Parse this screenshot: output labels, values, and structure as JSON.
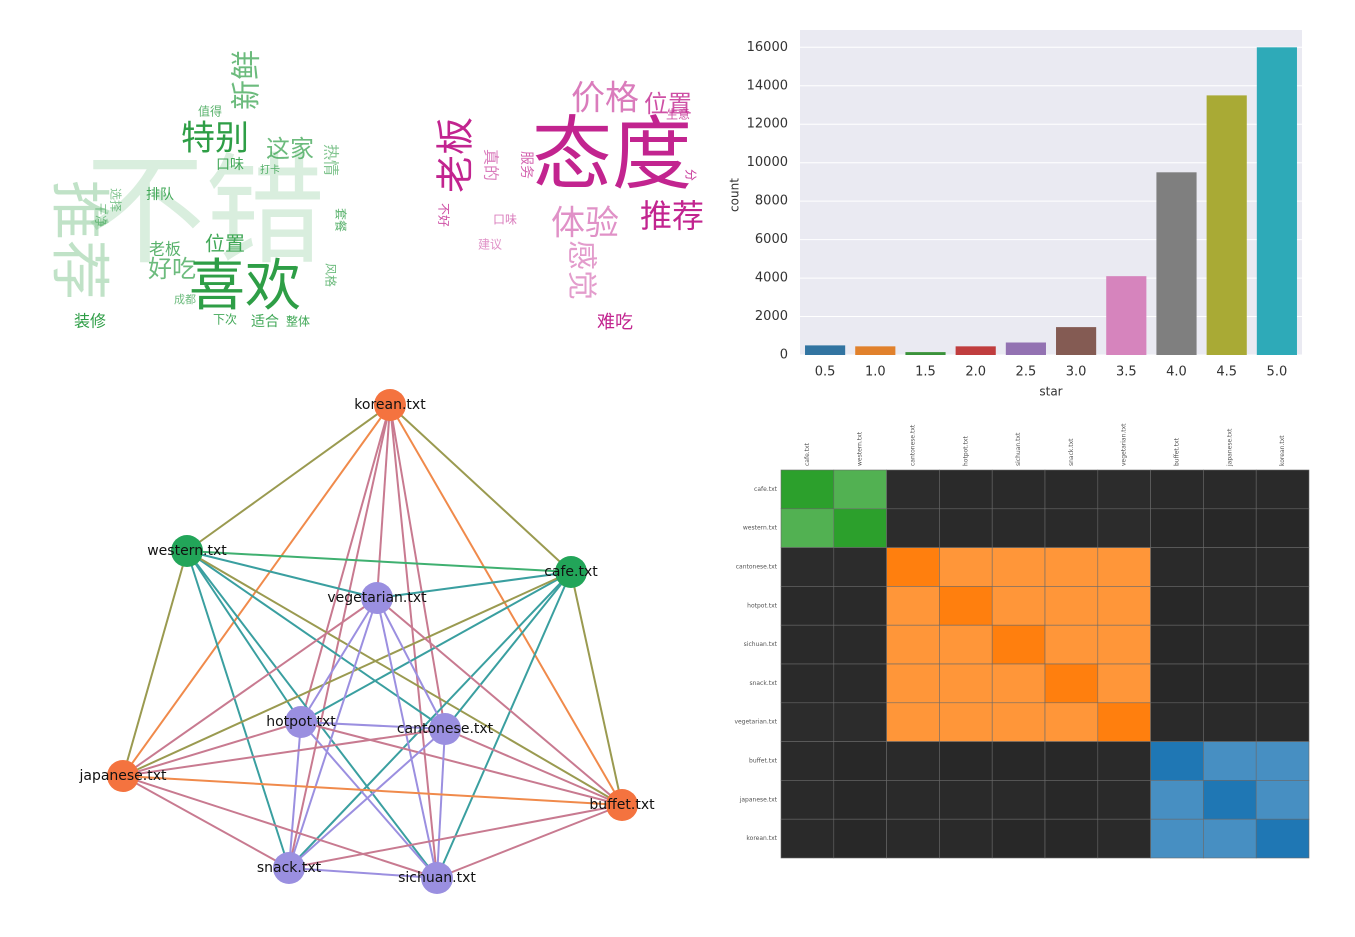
{
  "chart_data": [
    {
      "type": "wordcloud",
      "color": "#2e9e46",
      "words": [
        "不错",
        "推荐",
        "喜欢",
        "特别",
        "新鲜",
        "这家",
        "好吃",
        "位置",
        "老板",
        "装修",
        "口味",
        "排队",
        "适合",
        "下次",
        "整体",
        "热情",
        "值得",
        "打卡",
        "风格",
        "套餐",
        "干净",
        "选择",
        "成都"
      ]
    },
    {
      "type": "wordcloud",
      "color": "#c2248f",
      "words": [
        "态度",
        "老板",
        "推荐",
        "体验",
        "价格",
        "位置",
        "难吃",
        "感觉",
        "生意",
        "不好",
        "服务",
        "真的",
        "口味",
        "建议",
        "分"
      ]
    },
    {
      "type": "bar",
      "xlabel": "star",
      "ylabel": "count",
      "categories": [
        "0.5",
        "1.0",
        "1.5",
        "2.0",
        "2.5",
        "3.0",
        "3.5",
        "4.0",
        "4.5",
        "5.0"
      ],
      "values": [
        500,
        450,
        150,
        450,
        650,
        1450,
        4100,
        9500,
        13500,
        16000
      ],
      "colors": [
        "#3274a1",
        "#e1812c",
        "#3a923a",
        "#c03d3e",
        "#9372b2",
        "#845b53",
        "#d684bd",
        "#7f7f7f",
        "#a9aa35",
        "#2eaab8"
      ],
      "ylim": [
        0,
        16900
      ],
      "yticks": [
        0,
        2000,
        4000,
        6000,
        8000,
        10000,
        12000,
        14000,
        16000
      ],
      "grid": true
    },
    {
      "type": "network",
      "nodes": [
        {
          "label": "korean.txt",
          "color": "#f4733f"
        },
        {
          "label": "western.txt",
          "color": "#22a559"
        },
        {
          "label": "cafe.txt",
          "color": "#22a559"
        },
        {
          "label": "vegetarian.txt",
          "color": "#9a8fe0"
        },
        {
          "label": "hotpot.txt",
          "color": "#9a8fe0"
        },
        {
          "label": "cantonese.txt",
          "color": "#9a8fe0"
        },
        {
          "label": "japanese.txt",
          "color": "#f4733f"
        },
        {
          "label": "buffet.txt",
          "color": "#f4733f"
        },
        {
          "label": "snack.txt",
          "color": "#9a8fe0"
        },
        {
          "label": "sichuan.txt",
          "color": "#9a8fe0"
        }
      ],
      "edges": [
        [
          0,
          1,
          "#9a9a50"
        ],
        [
          0,
          2,
          "#9a9a50"
        ],
        [
          0,
          3,
          "#c87a90"
        ],
        [
          0,
          4,
          "#c87a90"
        ],
        [
          0,
          5,
          "#c87a90"
        ],
        [
          0,
          6,
          "#f08a4b"
        ],
        [
          0,
          7,
          "#f08a4b"
        ],
        [
          0,
          8,
          "#c87a90"
        ],
        [
          0,
          9,
          "#c87a90"
        ],
        [
          1,
          2,
          "#3fb070"
        ],
        [
          1,
          3,
          "#3a9fa0"
        ],
        [
          1,
          4,
          "#3a9fa0"
        ],
        [
          1,
          5,
          "#3a9fa0"
        ],
        [
          1,
          6,
          "#9a9a50"
        ],
        [
          1,
          7,
          "#9a9a50"
        ],
        [
          1,
          8,
          "#3a9fa0"
        ],
        [
          1,
          9,
          "#3a9fa0"
        ],
        [
          2,
          3,
          "#3a9fa0"
        ],
        [
          2,
          4,
          "#3a9fa0"
        ],
        [
          2,
          5,
          "#3a9fa0"
        ],
        [
          2,
          6,
          "#9a9a50"
        ],
        [
          2,
          7,
          "#9a9a50"
        ],
        [
          2,
          8,
          "#3a9fa0"
        ],
        [
          2,
          9,
          "#3a9fa0"
        ],
        [
          3,
          4,
          "#9b8fe0"
        ],
        [
          3,
          5,
          "#9b8fe0"
        ],
        [
          3,
          6,
          "#c87a90"
        ],
        [
          3,
          7,
          "#c87a90"
        ],
        [
          3,
          8,
          "#9b8fe0"
        ],
        [
          3,
          9,
          "#9b8fe0"
        ],
        [
          4,
          5,
          "#9b8fe0"
        ],
        [
          4,
          6,
          "#c87a90"
        ],
        [
          4,
          7,
          "#c87a90"
        ],
        [
          4,
          8,
          "#9b8fe0"
        ],
        [
          4,
          9,
          "#9b8fe0"
        ],
        [
          5,
          6,
          "#c87a90"
        ],
        [
          5,
          7,
          "#c87a90"
        ],
        [
          5,
          8,
          "#9b8fe0"
        ],
        [
          5,
          9,
          "#9b8fe0"
        ],
        [
          6,
          7,
          "#f08a4b"
        ],
        [
          6,
          8,
          "#c87a90"
        ],
        [
          6,
          9,
          "#c87a90"
        ],
        [
          7,
          8,
          "#c87a90"
        ],
        [
          7,
          9,
          "#c87a90"
        ],
        [
          8,
          9,
          "#9b8fe0"
        ]
      ]
    },
    {
      "type": "heatmap",
      "labels": [
        "cafe.txt",
        "western.txt",
        "cantonese.txt",
        "hotpot.txt",
        "sichuan.txt",
        "snack.txt",
        "vegetarian.txt",
        "buffet.txt",
        "japanese.txt",
        "korean.txt"
      ],
      "clusters": [
        0,
        0,
        1,
        1,
        1,
        1,
        1,
        2,
        2,
        2
      ],
      "cluster_colors": [
        "#2ca02c",
        "#ff7f0e",
        "#1f77b4"
      ],
      "values": [
        [
          1.0,
          0.85,
          0.12,
          0.1,
          0.1,
          0.1,
          0.12,
          0.1,
          0.1,
          0.1
        ],
        [
          0.85,
          1.0,
          0.12,
          0.1,
          0.1,
          0.1,
          0.12,
          0.08,
          0.08,
          0.08
        ],
        [
          0.12,
          0.12,
          1.0,
          0.85,
          0.85,
          0.85,
          0.85,
          0.1,
          0.1,
          0.1
        ],
        [
          0.1,
          0.1,
          0.85,
          1.0,
          0.85,
          0.85,
          0.85,
          0.08,
          0.1,
          0.1
        ],
        [
          0.1,
          0.1,
          0.85,
          0.85,
          1.0,
          0.85,
          0.85,
          0.08,
          0.1,
          0.08
        ],
        [
          0.1,
          0.1,
          0.85,
          0.85,
          0.85,
          1.0,
          0.85,
          0.08,
          0.08,
          0.08
        ],
        [
          0.12,
          0.12,
          0.85,
          0.85,
          0.85,
          0.85,
          1.0,
          0.1,
          0.1,
          0.1
        ],
        [
          0.1,
          0.08,
          0.1,
          0.08,
          0.08,
          0.08,
          0.1,
          1.0,
          0.85,
          0.85
        ],
        [
          0.1,
          0.08,
          0.1,
          0.1,
          0.1,
          0.08,
          0.1,
          0.85,
          1.0,
          0.85
        ],
        [
          0.1,
          0.08,
          0.1,
          0.1,
          0.08,
          0.08,
          0.1,
          0.85,
          0.85,
          1.0
        ]
      ]
    }
  ]
}
